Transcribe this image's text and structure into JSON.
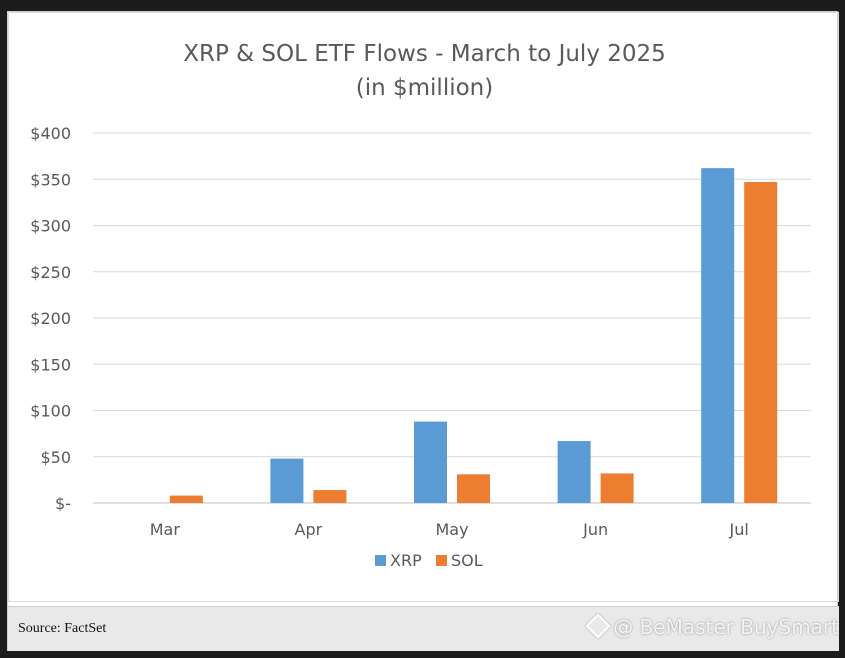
{
  "chart_data": {
    "type": "bar",
    "title": "XRP & SOL ETF Flows - March to July 2025",
    "subtitle": "(in $million)",
    "categories": [
      "Mar",
      "Apr",
      "May",
      "Jun",
      "Jul"
    ],
    "series": [
      {
        "name": "XRP",
        "color": "#5B9BD5",
        "values": [
          0,
          48,
          88,
          67,
          362
        ]
      },
      {
        "name": "SOL",
        "color": "#ED7D31",
        "values": [
          8,
          14,
          31,
          32,
          347
        ]
      }
    ],
    "ylim": [
      0,
      400
    ],
    "yticks": [
      0,
      50,
      100,
      150,
      200,
      250,
      300,
      350,
      400
    ],
    "ytick_labels": [
      "$-",
      "$50",
      "$100",
      "$150",
      "$200",
      "$250",
      "$300",
      "$350",
      "$400"
    ],
    "xlabel": "",
    "ylabel": "",
    "grid": true,
    "legend_position": "bottom"
  },
  "footer": {
    "source": "Source: FactSet",
    "watermark": "@ BeMaster BuySmart"
  }
}
